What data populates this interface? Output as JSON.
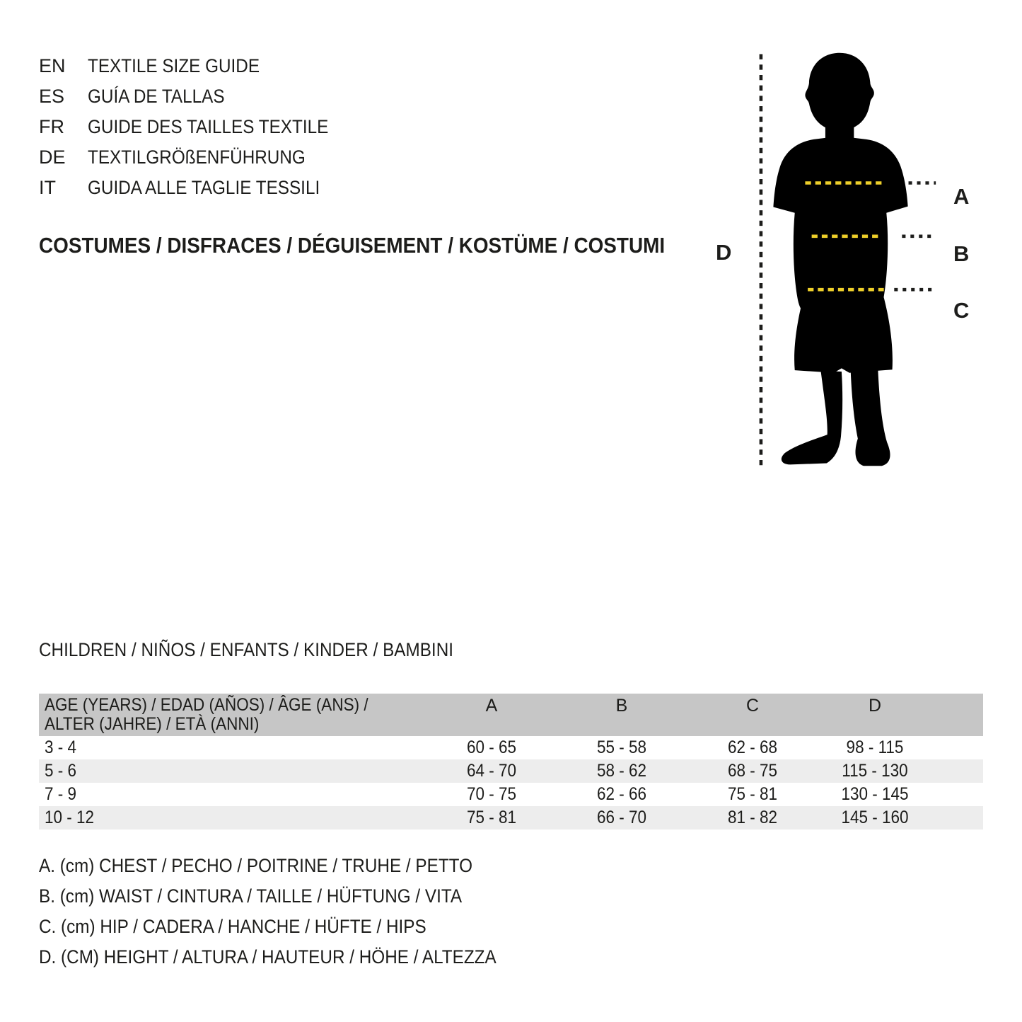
{
  "header": {
    "languages": [
      {
        "code": "EN",
        "label": "TEXTILE SIZE GUIDE"
      },
      {
        "code": "ES",
        "label": "GUÍA DE TALLAS"
      },
      {
        "code": "FR",
        "label": "GUIDE DES TAILLES TEXTILE"
      },
      {
        "code": "DE",
        "label": "TEXTILGRÖßENFÜHRUNG"
      },
      {
        "code": "IT",
        "label": "GUIDA ALLE TAGLIE TESSILI"
      }
    ],
    "category_heading": "COSTUMES / DISFRACES / DÉGUISEMENT / KOSTÜME / COSTUMI"
  },
  "figure": {
    "measure_labels": {
      "a": "A",
      "b": "B",
      "c": "C",
      "d": "D"
    }
  },
  "size_table": {
    "section_heading": "CHILDREN / NIÑOS / ENFANTS / KINDER / BAMBINI",
    "age_header_line1": "AGE (YEARS) / EDAD (AÑOS) / ÂGE (ANS) /",
    "age_header_line2": "ALTER (JAHRE) / ETÀ (ANNI)",
    "columns": [
      "A",
      "B",
      "C",
      "D"
    ],
    "rows": [
      {
        "age": "3 - 4",
        "a": "60 - 65",
        "b": "55 - 58",
        "c": "62 - 68",
        "d": "98 - 115"
      },
      {
        "age": "5 - 6",
        "a": "64 - 70",
        "b": "58 - 62",
        "c": "68 - 75",
        "d": "115 - 130"
      },
      {
        "age": "7 - 9",
        "a": "70 - 75",
        "b": "62 - 66",
        "c": "75 - 81",
        "d": "130 - 145"
      },
      {
        "age": "10 - 12",
        "a": "75 - 81",
        "b": "66 - 70",
        "c": "81 - 82",
        "d": "145 - 160"
      }
    ]
  },
  "legend": {
    "items": [
      "A. (cm) CHEST / PECHO / POITRINE / TRUHE / PETTO",
      "B. (cm) WAIST / CINTURA / TAILLE / HÜFTUNG / VITA",
      "C. (cm) HIP / CADERA / HANCHE / HÜFTE / HIPS",
      "D. (CM) HEIGHT / ALTURA / HAUTEUR / HÖHE / ALTEZZA"
    ]
  },
  "colors": {
    "text": "#1d1d1b",
    "silhouette": "#000000",
    "accent_yellow": "#eecf2a",
    "table_header_bg": "#c6c6c6",
    "table_alt_row_bg": "#ededed"
  }
}
